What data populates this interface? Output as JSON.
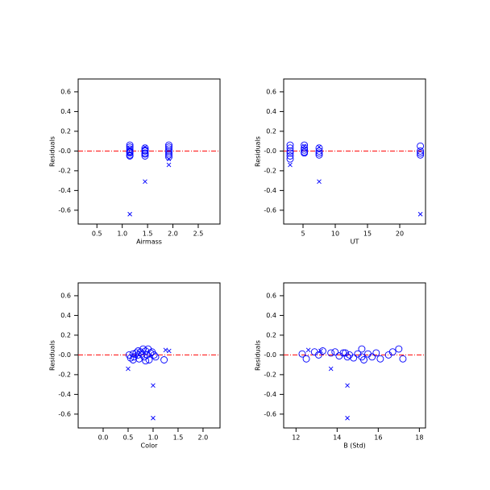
{
  "chart_data": [
    {
      "type": "scatter",
      "x_label": "Airmass",
      "y_label": "Residuals",
      "xlim": [
        0.13,
        2.93
      ],
      "ylim": [
        -0.74,
        0.73
      ],
      "xticks": [
        0.5,
        {
          "value": 1,
          "label": "1.0"
        },
        1.5,
        {
          "value": 2,
          "label": "2.0"
        },
        2.5
      ],
      "yticks": [
        0.6,
        0.4,
        0.2,
        {
          "value": 0,
          "label": "-0.0"
        },
        -0.2,
        -0.4,
        -0.6
      ],
      "reference_line": {
        "y": 0,
        "color": "#ff0000"
      },
      "series": [
        {
          "marker": "circle",
          "color": "#0000ff",
          "x": [
            1.15,
            1.15,
            1.15,
            1.15,
            1.15,
            1.15,
            1.15,
            1.15,
            1.45,
            1.45,
            1.45,
            1.45,
            1.45,
            1.45,
            1.92,
            1.92,
            1.92,
            1.92,
            1.92,
            1.92,
            1.92
          ],
          "y": [
            0.06,
            0.04,
            0.02,
            0.0,
            -0.01,
            -0.02,
            -0.04,
            -0.05,
            0.03,
            0.01,
            0.0,
            -0.02,
            -0.03,
            -0.05,
            0.06,
            0.04,
            0.02,
            0.0,
            -0.02,
            -0.04,
            -0.06
          ]
        },
        {
          "marker": "x",
          "color": "#0000ff",
          "x": [
            1.15,
            1.45,
            1.92,
            1.45,
            1.15,
            1.92
          ],
          "y": [
            -0.64,
            -0.31,
            -0.14,
            0.04,
            0.03,
            -0.08
          ]
        }
      ]
    },
    {
      "type": "scatter",
      "x_label": "UT",
      "y_label": "Residuals",
      "xlim": [
        2,
        24
      ],
      "ylim": [
        -0.74,
        0.73
      ],
      "xticks": [
        5,
        10,
        15,
        20
      ],
      "yticks": [
        0.6,
        0.4,
        0.2,
        {
          "value": 0,
          "label": "-0.0"
        },
        -0.2,
        -0.4,
        -0.6
      ],
      "reference_line": {
        "y": 0,
        "color": "#ff0000"
      },
      "series": [
        {
          "marker": "circle",
          "color": "#0000ff",
          "x": [
            3,
            3,
            3,
            3,
            3,
            3,
            5.2,
            5.2,
            5.2,
            5.2,
            5.2,
            7.5,
            7.5,
            7.5,
            7.5,
            23.2,
            23.2,
            23.2,
            23.2
          ],
          "y": [
            0.06,
            0.03,
            0.0,
            -0.02,
            -0.05,
            -0.08,
            0.06,
            0.03,
            0.01,
            -0.01,
            -0.02,
            0.03,
            0.0,
            -0.02,
            -0.04,
            0.05,
            0.0,
            -0.02,
            -0.04
          ]
        },
        {
          "marker": "x",
          "color": "#0000ff",
          "x": [
            3,
            7.5,
            23.2,
            5.2,
            7.5
          ],
          "y": [
            -0.14,
            -0.31,
            -0.64,
            0.05,
            0.04
          ]
        }
      ]
    },
    {
      "type": "scatter",
      "x_label": "Color",
      "y_label": "Residuals",
      "xlim": [
        -0.5,
        2.34
      ],
      "ylim": [
        -0.74,
        0.73
      ],
      "xticks": [
        {
          "value": 0,
          "label": "0.0"
        },
        0.5,
        {
          "value": 1,
          "label": "1.0"
        },
        1.5,
        {
          "value": 2,
          "label": "2.0"
        }
      ],
      "yticks": [
        0.6,
        0.4,
        0.2,
        {
          "value": 0,
          "label": "-0.0"
        },
        -0.2,
        -0.4,
        -0.6
      ],
      "reference_line": {
        "y": 0,
        "color": "#ff0000"
      },
      "series": [
        {
          "marker": "circle",
          "color": "#0000ff",
          "x": [
            0.52,
            0.55,
            0.6,
            0.62,
            0.66,
            0.7,
            0.72,
            0.75,
            0.78,
            0.8,
            0.82,
            0.85,
            0.88,
            0.9,
            0.92,
            0.95,
            0.98,
            1.02,
            1.05,
            0.7,
            0.6,
            0.85,
            1.22
          ],
          "y": [
            0.0,
            -0.03,
            0.01,
            -0.02,
            0.02,
            0.0,
            -0.04,
            0.03,
            0.01,
            0.06,
            -0.02,
            0.04,
            0.0,
            0.06,
            -0.05,
            0.02,
            0.03,
            0.0,
            -0.02,
            0.04,
            -0.05,
            -0.06,
            -0.05
          ]
        },
        {
          "marker": "x",
          "color": "#0000ff",
          "x": [
            0.5,
            1.0,
            1.0,
            1.25,
            1.32
          ],
          "y": [
            -0.14,
            -0.31,
            -0.64,
            0.05,
            0.04
          ]
        }
      ]
    },
    {
      "type": "scatter",
      "x_label": "B (Std)",
      "y_label": "Residuals",
      "xlim": [
        11.4,
        18.3
      ],
      "ylim": [
        -0.74,
        0.73
      ],
      "xticks": [
        12,
        14,
        16,
        18
      ],
      "yticks": [
        0.6,
        0.4,
        0.2,
        {
          "value": 0,
          "label": "-0.0"
        },
        -0.2,
        -0.4,
        -0.6
      ],
      "reference_line": {
        "y": 0,
        "color": "#ff0000"
      },
      "series": [
        {
          "marker": "circle",
          "color": "#0000ff",
          "x": [
            12.3,
            12.5,
            12.9,
            13.1,
            13.3,
            13.7,
            13.9,
            14.1,
            14.3,
            14.5,
            14.6,
            14.8,
            15.0,
            15.2,
            15.3,
            15.5,
            15.7,
            15.9,
            16.1,
            16.5,
            16.7,
            17.0,
            17.2,
            15.2,
            14.4
          ],
          "y": [
            0.01,
            -0.04,
            0.03,
            0.0,
            0.04,
            0.02,
            0.03,
            -0.01,
            0.02,
            -0.02,
            0.0,
            -0.03,
            0.01,
            0.06,
            -0.05,
            0.01,
            -0.02,
            0.02,
            -0.04,
            0.0,
            0.03,
            0.06,
            -0.04,
            -0.02,
            0.02
          ]
        },
        {
          "marker": "x",
          "color": "#0000ff",
          "x": [
            13.7,
            14.5,
            14.5,
            12.6,
            13.2
          ],
          "y": [
            -0.14,
            -0.31,
            -0.64,
            0.05,
            0.04
          ]
        }
      ]
    }
  ]
}
